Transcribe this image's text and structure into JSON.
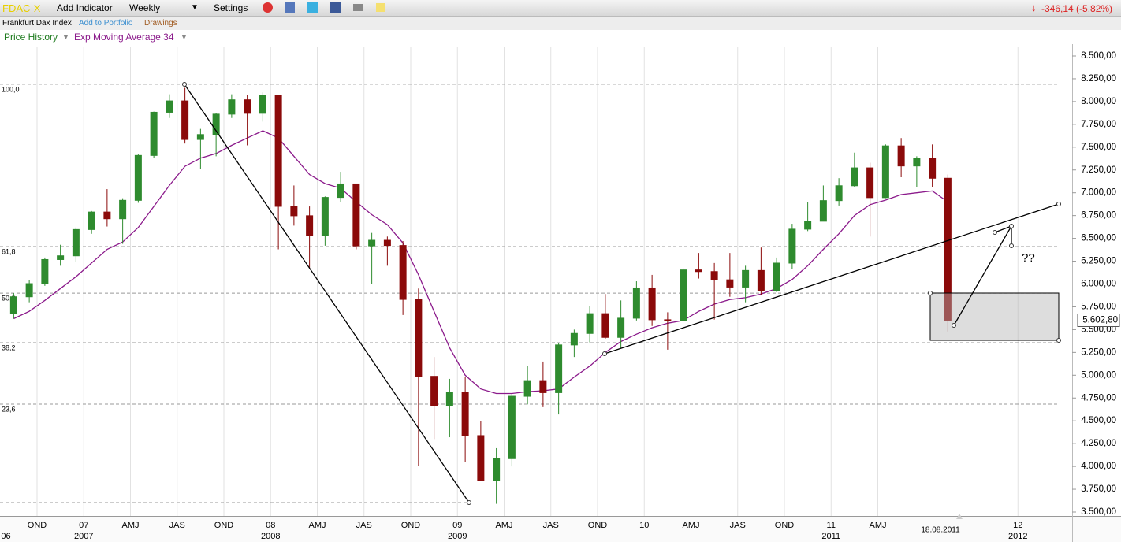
{
  "toolbar": {
    "symbol": "FDAC-X",
    "add_indicator": "Add Indicator",
    "interval": "Weekly",
    "settings": "Settings",
    "change": "-346,14 (-5,82%)"
  },
  "subbar": {
    "instrument": "Frankfurt Dax Index",
    "add_to_portfolio": "Add to Portfolio",
    "drawings": "Drawings"
  },
  "chart_data": {
    "type": "candlestick",
    "categories": [
      null,
      null,
      "OND",
      null,
      null,
      "07",
      null,
      null,
      "AMJ",
      null,
      null,
      "JAS",
      null,
      null,
      "OND",
      null,
      null,
      "08",
      null,
      null,
      "AMJ",
      null,
      null,
      "JAS",
      null,
      null,
      "OND",
      null,
      null,
      "09",
      null,
      null,
      "AMJ",
      null,
      null,
      "JAS",
      null,
      null,
      "OND",
      null,
      null,
      "10",
      null,
      null,
      "AMJ",
      null,
      null,
      "JAS",
      null,
      null,
      "OND",
      null,
      null,
      "11",
      null,
      null,
      "AMJ",
      null,
      null,
      null,
      null,
      null,
      null,
      null,
      null,
      "12",
      null,
      null
    ],
    "year_labels": [
      "06",
      null,
      null,
      null,
      null,
      "2007",
      null,
      null,
      null,
      null,
      null,
      null,
      null,
      null,
      null,
      null,
      null,
      "2008",
      null,
      null,
      null,
      null,
      null,
      null,
      null,
      null,
      null,
      null,
      null,
      "2009",
      null,
      null,
      null,
      null,
      null,
      null,
      null,
      null,
      null,
      null,
      null,
      null,
      null,
      null,
      null,
      null,
      null,
      null,
      null,
      null,
      null,
      null,
      null,
      "2011",
      null,
      null,
      null,
      null,
      null,
      null,
      null,
      null,
      null,
      null,
      null,
      "2012",
      null,
      null
    ],
    "series": [
      {
        "name": "Price History",
        "color": "#2e8b2e",
        "down_color": "#8b0a0a",
        "open": [
          5680,
          5860,
          6004,
          6268,
          6309,
          6597,
          6789,
          6715,
          6917,
          7409,
          7883,
          8007,
          7584,
          7638,
          7862,
          8019,
          7871,
          8067,
          6851,
          6748,
          6535,
          6949,
          7097,
          6418,
          6479,
          6422,
          5831,
          4988,
          4669,
          4810,
          4338,
          3843,
          4085,
          4769,
          4941,
          4809,
          5332,
          5458,
          5675,
          5415,
          5625,
          5957,
          5608,
          5598,
          6154,
          6136,
          6046,
          5966,
          6148,
          5925,
          6229,
          6601,
          6688,
          6914,
          7077,
          7273,
          6947,
          7514,
          7294,
          7376,
          7159,
          null,
          null,
          null,
          null,
          null,
          null,
          null
        ],
        "high": [
          5900,
          6040,
          6290,
          6430,
          6620,
          6800,
          7040,
          6940,
          7420,
          7890,
          8080,
          8150,
          7700,
          7870,
          8080,
          8070,
          8100,
          8070,
          7080,
          6850,
          6960,
          7230,
          7100,
          6560,
          6520,
          6470,
          5950,
          5200,
          4960,
          4980,
          4500,
          4200,
          4800,
          5100,
          5150,
          5350,
          5500,
          5760,
          5890,
          5820,
          6030,
          6100,
          5690,
          6170,
          6340,
          6230,
          6340,
          6200,
          6400,
          6290,
          6660,
          6900,
          7080,
          7160,
          7440,
          7330,
          7530,
          7600,
          7400,
          7530,
          7200,
          null,
          null,
          null,
          null,
          null,
          null,
          null
        ],
        "low": [
          5620,
          5800,
          5980,
          6200,
          6240,
          6550,
          6630,
          6440,
          6890,
          7380,
          7820,
          7540,
          7260,
          7400,
          7820,
          7520,
          7780,
          6380,
          6640,
          6170,
          6420,
          6900,
          6380,
          6000,
          6200,
          5660,
          4010,
          4300,
          4320,
          4050,
          3840,
          3590,
          4000,
          4680,
          4650,
          4570,
          5200,
          5360,
          5400,
          5300,
          5600,
          5540,
          5280,
          5590,
          6060,
          5610,
          5860,
          5800,
          5880,
          5910,
          6160,
          6580,
          6690,
          6860,
          7060,
          6520,
          6940,
          7170,
          7060,
          7060,
          5480,
          null,
          null,
          null,
          null,
          null,
          null,
          null
        ],
        "close": [
          5860,
          6004,
          6268,
          6309,
          6597,
          6789,
          6715,
          6917,
          7409,
          7883,
          8007,
          7584,
          7638,
          7862,
          8019,
          7871,
          8067,
          6851,
          6748,
          6535,
          6949,
          7097,
          6418,
          6479,
          6422,
          5831,
          4988,
          4669,
          4810,
          4338,
          3843,
          4085,
          4769,
          4941,
          4809,
          5332,
          5458,
          5675,
          5415,
          5625,
          5957,
          5608,
          5598,
          6154,
          6136,
          6046,
          5966,
          6148,
          5925,
          6229,
          6601,
          6688,
          6914,
          7077,
          7273,
          6947,
          7514,
          7294,
          7376,
          7159,
          5603,
          null,
          null,
          null,
          null,
          null,
          null,
          null
        ]
      },
      {
        "name": "Exp Moving Average 34",
        "color": "#8b1a8b",
        "values": [
          5620,
          5700,
          5820,
          5950,
          6080,
          6230,
          6380,
          6460,
          6620,
          6850,
          7080,
          7290,
          7380,
          7430,
          7520,
          7600,
          7680,
          7600,
          7400,
          7200,
          7100,
          7050,
          6900,
          6760,
          6650,
          6450,
          6100,
          5700,
          5300,
          5000,
          4850,
          4800,
          4800,
          4820,
          4830,
          4850,
          4980,
          5100,
          5250,
          5370,
          5450,
          5520,
          5570,
          5600,
          5700,
          5780,
          5830,
          5850,
          5890,
          5950,
          6050,
          6200,
          6380,
          6550,
          6750,
          6870,
          6920,
          6980,
          7000,
          7020,
          6900,
          null,
          null,
          null,
          null,
          null,
          null,
          null
        ]
      }
    ],
    "ylim": [
      3500,
      8500
    ],
    "yticks": [
      {
        "value": 3500,
        "label": "3.500,00"
      },
      {
        "value": 3750,
        "label": "3.750,00"
      },
      {
        "value": 4000,
        "label": "4.000,00"
      },
      {
        "value": 4250,
        "label": "4.250,00"
      },
      {
        "value": 4500,
        "label": "4.500,00"
      },
      {
        "value": 4750,
        "label": "4.750,00"
      },
      {
        "value": 5000,
        "label": "5.000,00"
      },
      {
        "value": 5250,
        "label": "5.250,00"
      },
      {
        "value": 5500,
        "label": "5.500,00"
      },
      {
        "value": 5750,
        "label": "5.750,00"
      },
      {
        "value": 6000,
        "label": "6.000,00"
      },
      {
        "value": 6250,
        "label": "6.250,00"
      },
      {
        "value": 6500,
        "label": "6.500,00"
      },
      {
        "value": 6750,
        "label": "6.750,00"
      },
      {
        "value": 7000,
        "label": "7.000,00"
      },
      {
        "value": 7250,
        "label": "7.250,00"
      },
      {
        "value": 7500,
        "label": "7.500,00"
      },
      {
        "value": 7750,
        "label": "7.750,00"
      },
      {
        "value": 8000,
        "label": "8.000,00"
      },
      {
        "value": 8250,
        "label": "8.250,00"
      },
      {
        "value": 8500,
        "label": "8.500,00"
      }
    ],
    "grid": true,
    "fib_levels": [
      {
        "label": "100,0",
        "price": 8190
      },
      {
        "label": "61,8",
        "price": 6410
      },
      {
        "label": "50,0",
        "price": 5900
      },
      {
        "label": "38,2",
        "price": 5357
      },
      {
        "label": "23,6",
        "price": 4683
      }
    ],
    "last_price": {
      "value": 5602.8,
      "label": "5.602,80"
    },
    "date_label": "18.08.2011",
    "note": "??"
  }
}
